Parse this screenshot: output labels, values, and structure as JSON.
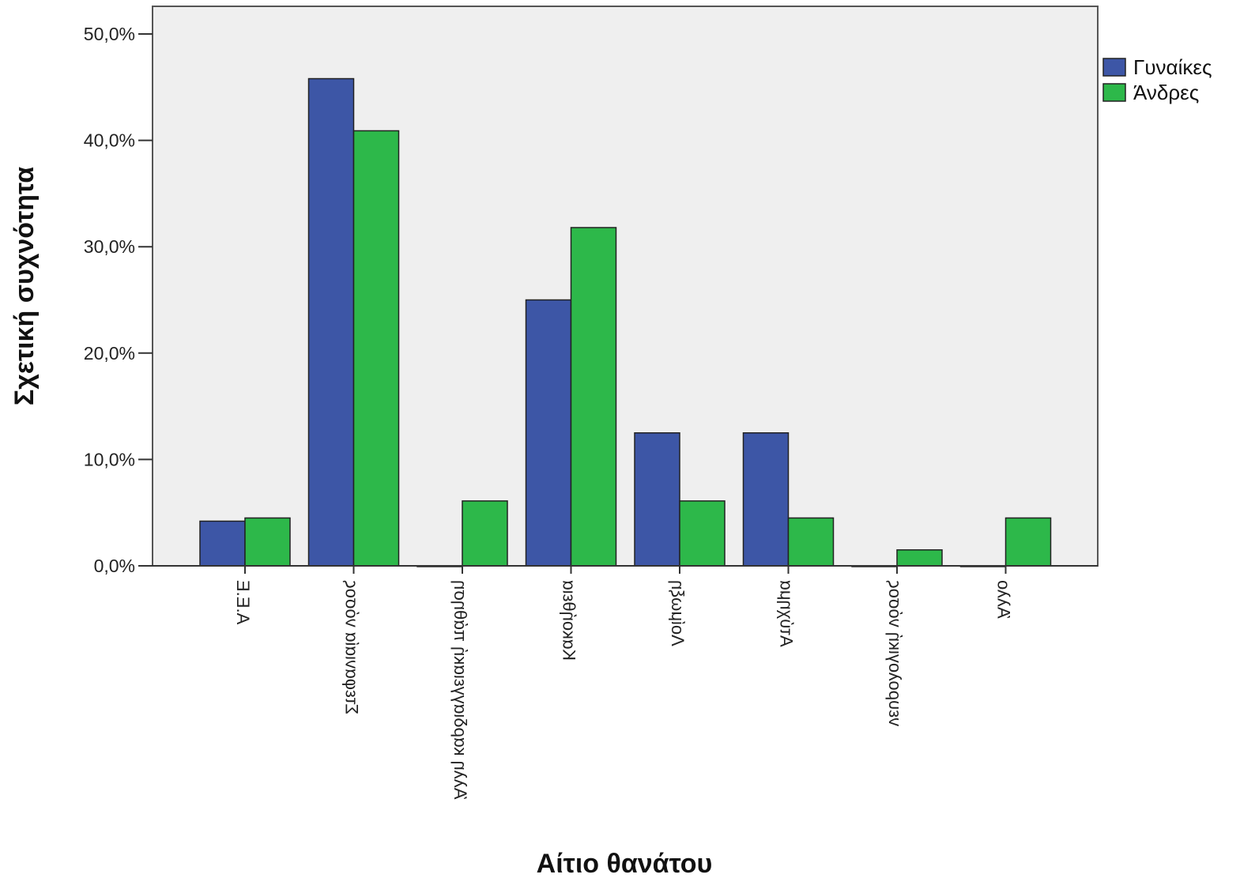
{
  "chart_data": {
    "type": "bar",
    "xlabel": "Αίτιο θανάτου",
    "ylabel": "Σχετική συχνότητα",
    "ylim": [
      0,
      50
    ],
    "yticks": [
      "0,0%",
      "10,0%",
      "20,0%",
      "30,0%",
      "40,0%",
      "50,0%"
    ],
    "categories": [
      "Α.Ε.Ε",
      "Στεφανιαία νόσος",
      "Άλλη καρδιαγγειακή πάθηση",
      "Κακοήθεια",
      "Λοίμωξη",
      "Ατύχημα",
      "νευρολογική νόσος",
      "Άλλο"
    ],
    "series": [
      {
        "name": "Γυναίκες",
        "color": "#3d56a6",
        "values": [
          4.2,
          45.8,
          0,
          25.0,
          12.5,
          12.5,
          0,
          0
        ]
      },
      {
        "name": "Άνδρες",
        "color": "#2db84a",
        "values": [
          4.5,
          40.9,
          6.1,
          31.8,
          6.1,
          4.5,
          1.5,
          4.5
        ]
      }
    ],
    "legend": "top-right",
    "grid": false,
    "plot_background": "#efefef"
  }
}
